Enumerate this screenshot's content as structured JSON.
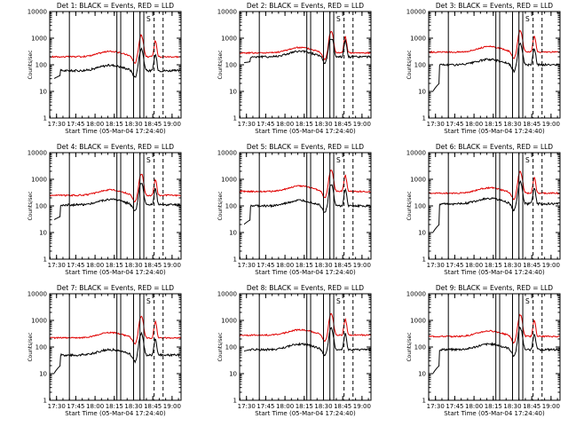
{
  "panels": [
    {
      "title": "Det 1: BLACK = Events, RED = LLD",
      "black_start_level": 30,
      "black_base": 60,
      "red_base": 200,
      "black_peak": 650,
      "red_peak": 1500
    },
    {
      "title": "Det 2: BLACK = Events, RED = LLD",
      "black_start_level": 120,
      "black_base": 200,
      "red_base": 280,
      "black_peak": 900,
      "red_peak": 1700
    },
    {
      "title": "Det 3: BLACK = Events, RED = LLD",
      "black_start_level": 10,
      "black_base": 100,
      "red_base": 300,
      "black_peak": 800,
      "red_peak": 1800
    },
    {
      "title": "Det 4: BLACK = Events, RED = LLD",
      "black_start_level": 30,
      "black_base": 110,
      "red_base": 250,
      "black_peak": 700,
      "red_peak": 1600
    },
    {
      "title": "Det 5: BLACK = Events, RED = LLD",
      "black_start_level": 20,
      "black_base": 100,
      "red_base": 350,
      "black_peak": 900,
      "red_peak": 2000
    },
    {
      "title": "Det 6: BLACK = Events, RED = LLD",
      "black_start_level": 10,
      "black_base": 120,
      "red_base": 300,
      "black_peak": 900,
      "red_peak": 2200
    },
    {
      "title": "Det 7: BLACK = Events, RED = LLD",
      "black_start_level": 10,
      "black_base": 50,
      "red_base": 220,
      "black_peak": 600,
      "red_peak": 1500
    },
    {
      "title": "Det 8: BLACK = Events, RED = LLD",
      "black_start_level": 70,
      "black_base": 80,
      "red_base": 280,
      "black_peak": 900,
      "red_peak": 2500
    },
    {
      "title": "Det 9: BLACK = Events, RED = LLD",
      "black_start_level": 10,
      "black_base": 80,
      "red_base": 250,
      "black_peak": 600,
      "red_peak": 1500
    }
  ],
  "axis": {
    "ylabel": "Counts/sec",
    "xlabel": "Start Time (05-Mar-04 17:24:40)",
    "xticks": [
      "17:30",
      "17:45",
      "18:00",
      "18:15",
      "18:30",
      "18:45",
      "19:00"
    ],
    "yticks": [
      "1",
      "10",
      "100",
      "1000",
      "10000"
    ],
    "corner_label": "S"
  },
  "chart_data": {
    "type": "line",
    "layout": "3x3 grid of detector panels",
    "x_range": [
      "17:24:40",
      "19:07"
    ],
    "ylim": [
      1,
      10000
    ],
    "yscale": "log",
    "series_colors": {
      "events": "#000000",
      "lld": "#e00000"
    },
    "solid_markers": [
      "17:40",
      "18:17",
      "18:20",
      "18:30",
      "18:35",
      "18:38"
    ],
    "dashed_markers": [
      "18:46",
      "18:53"
    ]
  }
}
